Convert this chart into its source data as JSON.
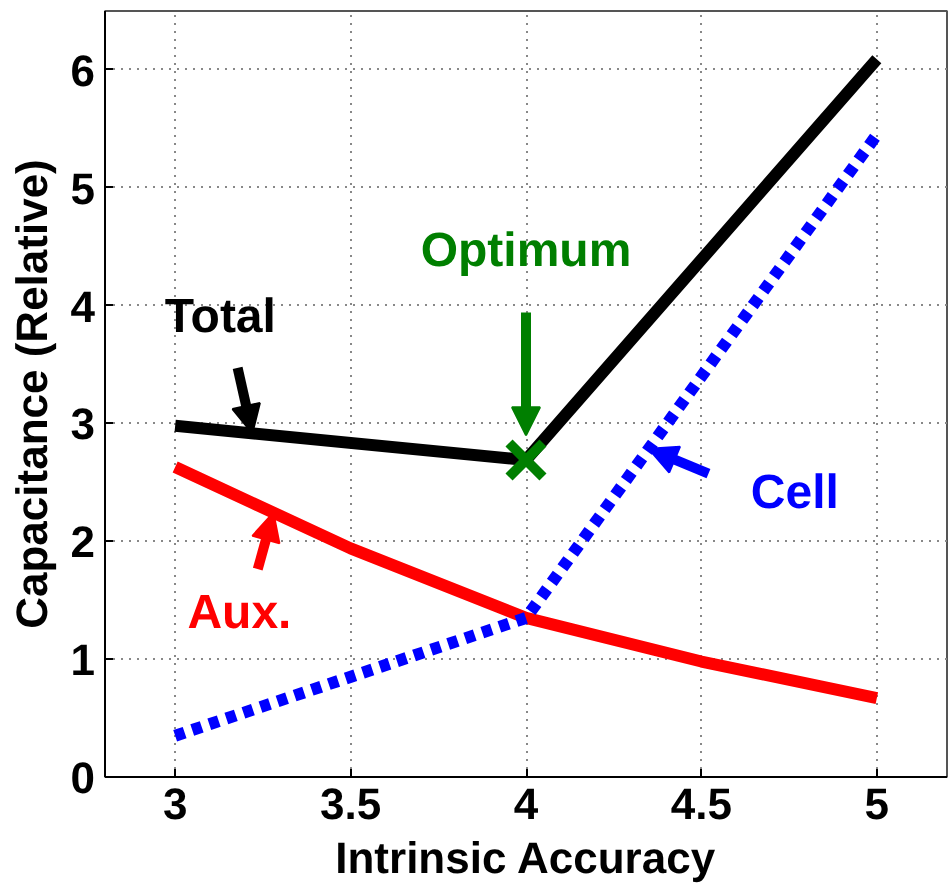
{
  "chart_data": {
    "type": "line",
    "xlabel": "Intrinsic Accuracy",
    "ylabel": "Capacitance (Relative)",
    "x": [
      3,
      4,
      5
    ],
    "xlim": [
      2.8,
      5.2
    ],
    "ylim": [
      0,
      6.5
    ],
    "xticks": [
      3,
      3.5,
      4,
      4.5,
      5
    ],
    "yticks": [
      0,
      1,
      2,
      3,
      4,
      5,
      6
    ],
    "grid": true,
    "series": [
      {
        "name": "Total",
        "color": "#000000",
        "values": [
          2.98,
          2.69,
          6.09
        ],
        "line_style": "solid"
      },
      {
        "name": "Aux.",
        "color": "#ff0000",
        "x": [
          3,
          3.5,
          4,
          4.5,
          5
        ],
        "values": [
          2.63,
          1.94,
          1.35,
          0.98,
          0.67
        ],
        "line_style": "solid"
      },
      {
        "name": "Cell",
        "color": "#0000ff",
        "values": [
          0.35,
          1.35,
          5.45
        ],
        "line_style": "dotted"
      },
      {
        "name": "Optimum",
        "type": "scatter",
        "marker": "cross",
        "color": "#007f00",
        "x": [
          4
        ],
        "values": [
          2.69
        ]
      }
    ]
  }
}
